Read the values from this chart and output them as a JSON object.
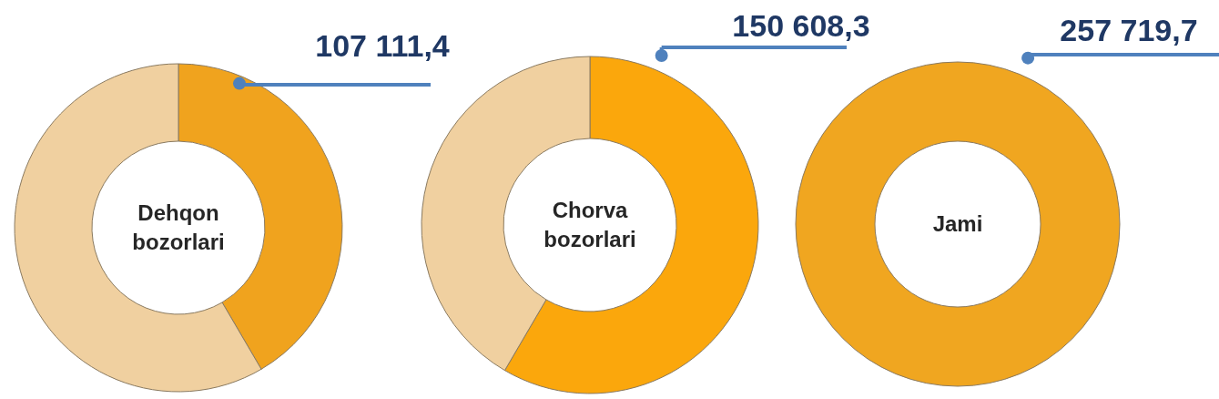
{
  "chart_data": [
    {
      "type": "donut",
      "title": "Dehqon bozorlari",
      "categories": [
        null,
        null
      ],
      "values": [
        107111.4,
        150608.3
      ],
      "colors": [
        "#f0a31e",
        "#f0d0a0"
      ],
      "value_labels": [
        "107 111,4",
        null
      ]
    },
    {
      "type": "donut",
      "title": "Chorva bozorlari",
      "categories": [
        null,
        null
      ],
      "values": [
        150608.3,
        107111.4
      ],
      "colors": [
        "#fba70c",
        "#f0d0a0"
      ],
      "value_labels": [
        "150 608,3",
        null
      ]
    },
    {
      "type": "donut",
      "title": "Jami",
      "categories": [
        null
      ],
      "values": [
        257719.7
      ],
      "colors": [
        "#f0a620"
      ],
      "value_labels": [
        "257 719,7"
      ]
    }
  ]
}
